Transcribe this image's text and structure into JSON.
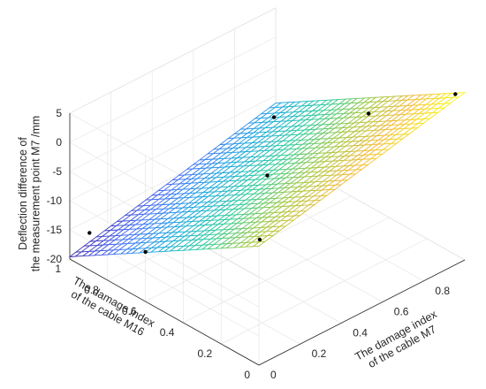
{
  "chart_data": {
    "type": "surface",
    "title": "",
    "xlabel": [
      "The damage index",
      "of the cable M7"
    ],
    "ylabel": [
      "The damage index",
      "of the cable M16"
    ],
    "zlabel": [
      "Deflection difference of",
      "the measurement point M7 /mm"
    ],
    "xlim": [
      0,
      1
    ],
    "ylim": [
      0,
      1
    ],
    "zlim": [
      -20,
      5
    ],
    "xticks": [
      0,
      0.2,
      0.4,
      0.6,
      0.8
    ],
    "yticks": [
      0,
      0.2,
      0.4,
      0.6,
      0.8,
      1
    ],
    "zticks": [
      -20,
      -15,
      -10,
      -5,
      0,
      5
    ],
    "grid": true,
    "colormap": [
      "#3e26a8",
      "#4772fa",
      "#1caadf",
      "#2ecc9a",
      "#a0c83e",
      "#f4bb3a",
      "#f9fb0e"
    ],
    "surface": {
      "description": "plane z(x,y) fitted to measured points",
      "z_at_x0_y0": 0.4,
      "dz_dx": 8.3,
      "dz_dy": -20.0,
      "x": [
        0,
        0.03,
        0.07,
        0.1,
        0.13,
        0.17,
        0.2,
        0.23,
        0.27,
        0.3,
        0.33,
        0.37,
        0.4,
        0.43,
        0.47,
        0.5,
        0.53,
        0.57,
        0.6,
        0.63,
        0.67,
        0.7,
        0.73,
        0.77,
        0.8,
        0.83,
        0.87,
        0.9,
        0.93,
        0.97,
        1
      ],
      "y": [
        0,
        0.03,
        0.07,
        0.1,
        0.13,
        0.17,
        0.2,
        0.23,
        0.27,
        0.3,
        0.33,
        0.37,
        0.4,
        0.43,
        0.47,
        0.5,
        0.53,
        0.57,
        0.6,
        0.63,
        0.67,
        0.7,
        0.73,
        0.77,
        0.8,
        0.83,
        0.87,
        0.9,
        0.93,
        0.97,
        1
      ]
    },
    "points": [
      {
        "x": 0.0,
        "y": 0.6,
        "z": -11.5
      },
      {
        "x": 0.5,
        "y": 0.5,
        "z": -5.6
      },
      {
        "x": 0.9,
        "y": 0.4,
        "z": -0.4
      },
      {
        "x": 0.05,
        "y": 0.05,
        "z": -0.3
      },
      {
        "x": 0.9,
        "y": 0.9,
        "z": -10.1
      },
      {
        "x": 0.05,
        "y": 0.95,
        "z": -15.5
      },
      {
        "x": 1.0,
        "y": 0.05,
        "z": 7.5
      }
    ]
  }
}
